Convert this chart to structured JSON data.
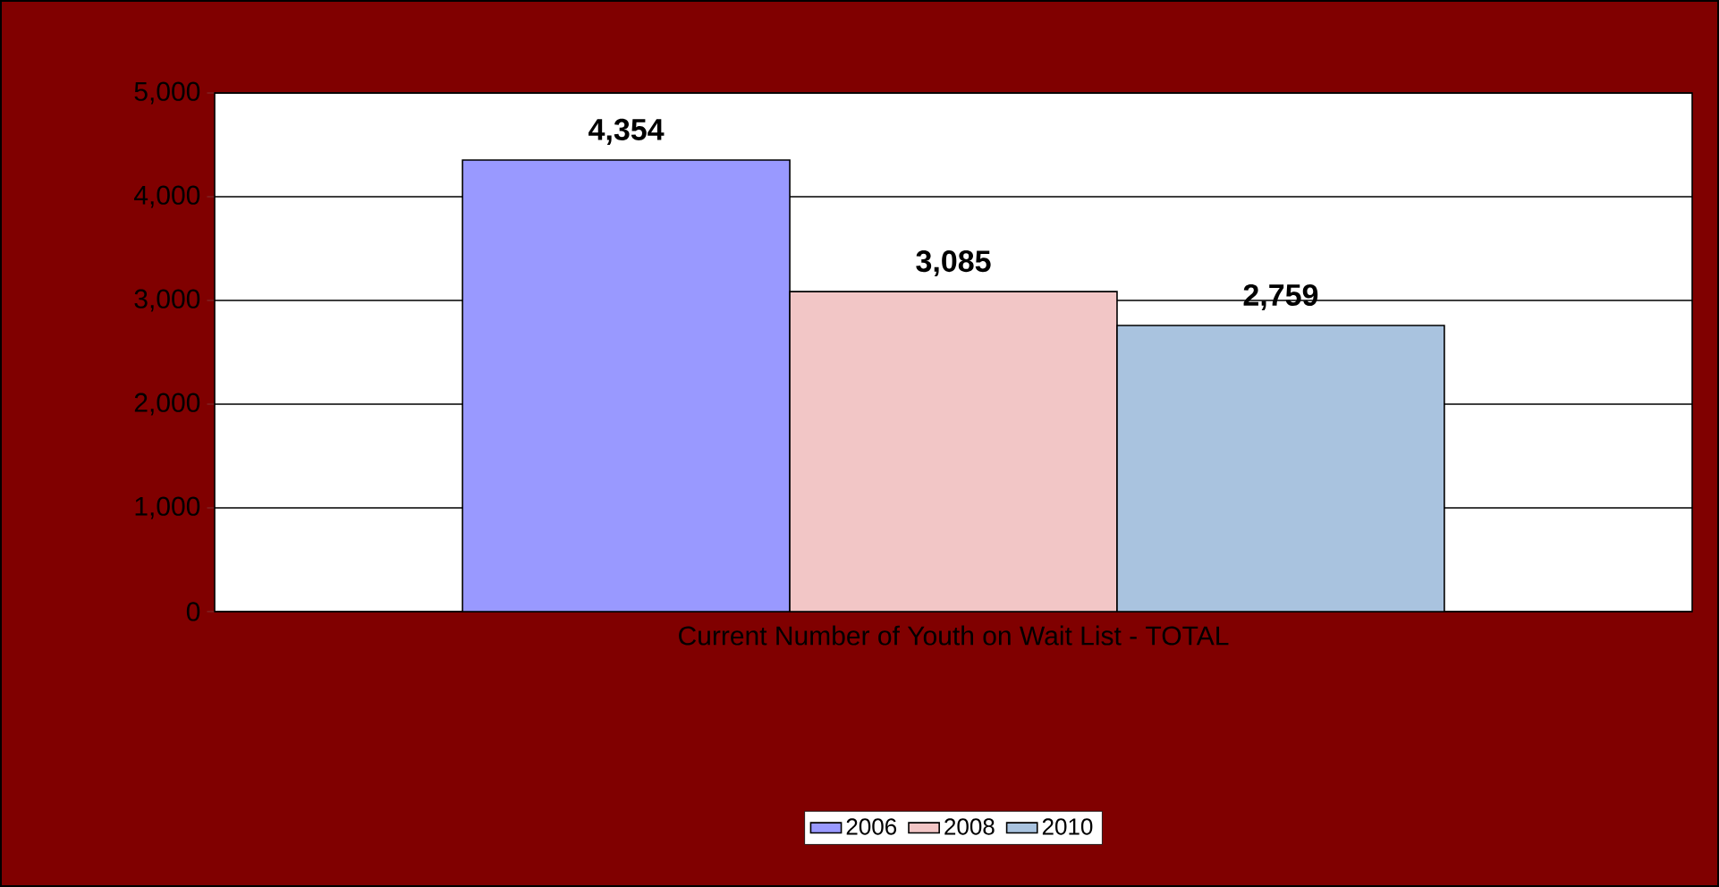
{
  "chart_data": {
    "type": "bar",
    "categories": [
      "Current Number of Youth on Wait List - TOTAL"
    ],
    "series": [
      {
        "name": "2006",
        "color": "#9999ff",
        "values": [
          4354
        ],
        "value_labels": [
          "4,354"
        ]
      },
      {
        "name": "2008",
        "color": "#f2c6c6",
        "values": [
          3085
        ],
        "value_labels": [
          "3,085"
        ]
      },
      {
        "name": "2010",
        "color": "#a9c3df",
        "values": [
          2759
        ],
        "value_labels": [
          "2,759"
        ]
      }
    ],
    "ylim": [
      0,
      5000
    ],
    "yticks": [
      {
        "value": 0,
        "label": "0"
      },
      {
        "value": 1000,
        "label": "1,000"
      },
      {
        "value": 2000,
        "label": "2,000"
      },
      {
        "value": 3000,
        "label": "3,000"
      },
      {
        "value": 4000,
        "label": "4,000"
      },
      {
        "value": 5000,
        "label": "5,000"
      }
    ],
    "grid": "y",
    "legend": "bottom"
  }
}
